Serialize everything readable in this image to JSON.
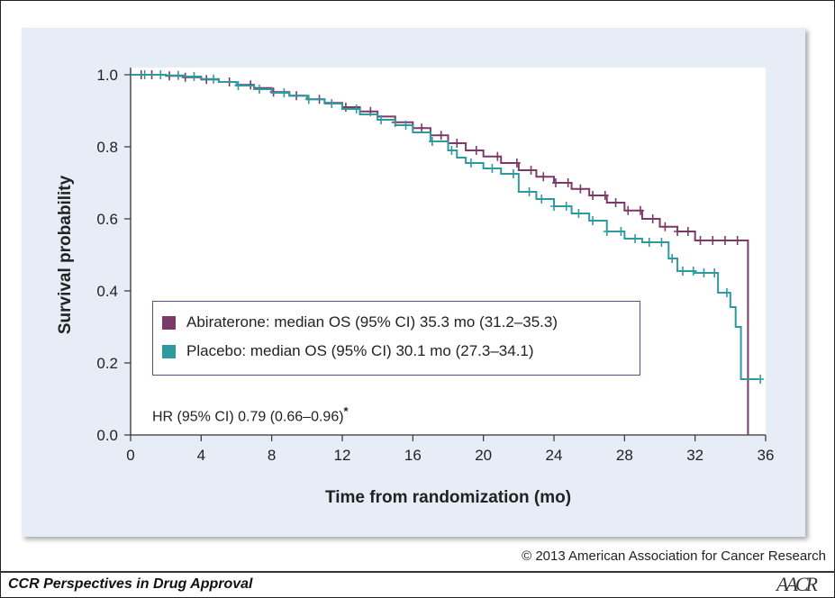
{
  "copyright": "© 2013 American Association for Cancer Research",
  "footer": {
    "title": "CCR Perspectives in Drug Approval",
    "logo": "AACR"
  },
  "colors": {
    "abiraterone": "#7b3a67",
    "placebo": "#2e9aa0",
    "panel": "#e6edf6"
  },
  "chart_data": {
    "type": "line",
    "title": "",
    "xlabel": "Time from randomization (mo)",
    "ylabel": "Survival probability",
    "xlim": [
      0,
      36
    ],
    "ylim": [
      0.0,
      1.0
    ],
    "xticks": [
      "0",
      "4",
      "8",
      "12",
      "16",
      "20",
      "24",
      "28",
      "32",
      "36"
    ],
    "yticks": [
      "0.0",
      "0.2",
      "0.4",
      "0.6",
      "0.8",
      "1.0"
    ],
    "grid": false,
    "legend_position": "center-left",
    "legend": [
      "Abiraterone: median OS (95% CI) 35.3 mo (31.2–35.3)",
      "Placebo: median OS (95% CI) 30.1 mo (27.3–34.1)"
    ],
    "annotation": {
      "text": "HR (95% CI) 0.79 (0.66–0.96)",
      "mark": "*"
    },
    "series": [
      {
        "name": "Abiraterone",
        "x": [
          0,
          1,
          2,
          3,
          4,
          5,
          6,
          7,
          8,
          9,
          10,
          11,
          12,
          13,
          14,
          15,
          16,
          17,
          18,
          19,
          20,
          21,
          22,
          23,
          24,
          25,
          26,
          27,
          28,
          29,
          30,
          31,
          32,
          33,
          34,
          35.0,
          35.0
        ],
        "y": [
          1.0,
          1.0,
          0.997,
          0.993,
          0.987,
          0.98,
          0.972,
          0.963,
          0.952,
          0.942,
          0.932,
          0.922,
          0.91,
          0.898,
          0.884,
          0.868,
          0.852,
          0.832,
          0.81,
          0.79,
          0.773,
          0.755,
          0.735,
          0.717,
          0.7,
          0.683,
          0.665,
          0.645,
          0.623,
          0.6,
          0.578,
          0.565,
          0.54,
          0.54,
          0.54,
          0.54,
          0.0
        ],
        "censor_x": [
          0.6,
          1.2,
          2.2,
          3.1,
          4.3,
          5.6,
          6.8,
          8.1,
          9.4,
          10.7,
          12.2,
          13.6,
          15.0,
          16.5,
          17.6,
          18.5,
          19.6,
          20.8,
          21.9,
          22.7,
          23.4,
          24.1,
          24.8,
          25.5,
          26.2,
          26.9,
          27.5,
          28.2,
          28.9,
          29.6,
          30.3,
          31.0,
          31.6,
          32.3,
          33.0,
          33.7,
          34.4
        ]
      },
      {
        "name": "Placebo",
        "x": [
          0,
          1,
          2,
          3,
          4,
          5,
          6,
          7,
          8,
          9,
          10,
          11,
          12,
          13,
          14,
          15,
          16,
          17,
          18,
          18.5,
          19,
          20,
          21,
          22,
          23,
          24,
          25,
          26,
          27,
          28,
          29,
          30,
          30.5,
          31,
          32,
          33,
          33.3,
          34,
          34.3,
          34.6,
          35.6
        ],
        "y": [
          1.0,
          1.0,
          0.998,
          0.995,
          0.988,
          0.98,
          0.97,
          0.96,
          0.95,
          0.942,
          0.932,
          0.92,
          0.905,
          0.89,
          0.875,
          0.86,
          0.84,
          0.815,
          0.79,
          0.77,
          0.755,
          0.74,
          0.725,
          0.675,
          0.655,
          0.635,
          0.615,
          0.595,
          0.565,
          0.545,
          0.535,
          0.535,
          0.49,
          0.455,
          0.45,
          0.45,
          0.395,
          0.355,
          0.3,
          0.155,
          0.155
        ],
        "censor_x": [
          0.8,
          1.7,
          2.7,
          3.6,
          4.7,
          6.1,
          7.3,
          8.7,
          10.1,
          11.4,
          12.8,
          14.2,
          15.6,
          17.1,
          18.2,
          19.3,
          20.5,
          21.7,
          22.6,
          23.3,
          24.0,
          24.7,
          25.4,
          26.2,
          27.0,
          27.8,
          28.6,
          29.4,
          30.1,
          30.7,
          31.3,
          31.9,
          32.5,
          33.1,
          33.8,
          35.7
        ]
      }
    ]
  }
}
